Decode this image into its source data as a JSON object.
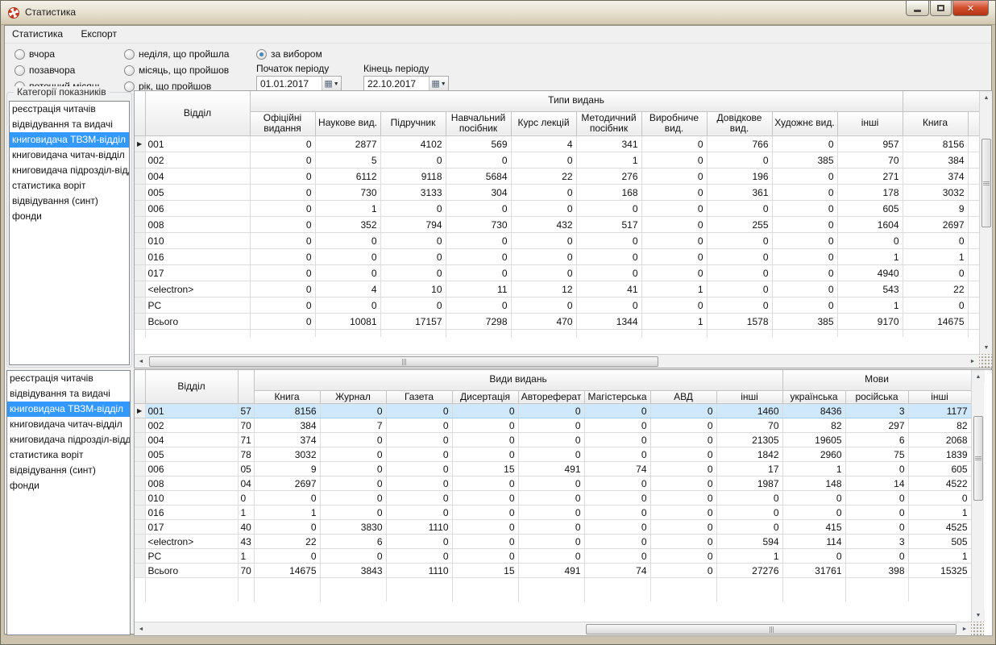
{
  "window": {
    "title": "Статистика"
  },
  "icons": {
    "close": "✕",
    "calendar": "▦",
    "dropdown": "▼",
    "row_marker": "▶",
    "scroll_up": "▲",
    "scroll_down": "▼",
    "scroll_left": "◄",
    "scroll_right": "►"
  },
  "menu": {
    "items": [
      "Статистика",
      "Експорт"
    ]
  },
  "filters": {
    "radios_col1": [
      "вчора",
      "позавчора",
      "поточний місяць"
    ],
    "radios_col2": [
      "неділя, що пройшла",
      "місяць, що пройшов",
      "рік, що пройшов"
    ],
    "radio_custom": "за вибором",
    "selected_radio": "за вибором",
    "period_start_label": "Початок періоду",
    "period_end_label": "Кінець періоду",
    "period_start_value": "01.01.2017",
    "period_end_value": "22.10.2017"
  },
  "sidebar": {
    "group_label": "Категорії показників",
    "items": [
      "реєстрація читачів",
      "відвідування та видачі",
      "книговидача ТВЗМ-відділ",
      "книговидача читач-відділ",
      "книговидача підрозділ-відділ",
      "статистика воріт",
      "відвідування (синт)",
      "фонди"
    ],
    "selected_index": 2
  },
  "top_table": {
    "group_header": "Типи видань",
    "dept_header": "Відділ",
    "columns": [
      "Офіційні видання",
      "Наукове вид.",
      "Підручник",
      "Навчальний посібник",
      "Курс лекцій",
      "Методичний посібник",
      "Виробниче вид.",
      "Довідкове вид.",
      "Художнє вид.",
      "інші"
    ],
    "next_group_column": "Книга",
    "rows": [
      {
        "dept": "001",
        "values": [
          0,
          2877,
          4102,
          569,
          4,
          341,
          0,
          766,
          0,
          957,
          8156
        ]
      },
      {
        "dept": "002",
        "values": [
          0,
          5,
          0,
          0,
          0,
          1,
          0,
          0,
          385,
          70,
          384
        ]
      },
      {
        "dept": "004",
        "values": [
          0,
          6112,
          9118,
          5684,
          22,
          276,
          0,
          196,
          0,
          271,
          374
        ]
      },
      {
        "dept": "005",
        "values": [
          0,
          730,
          3133,
          304,
          0,
          168,
          0,
          361,
          0,
          178,
          3032
        ]
      },
      {
        "dept": "006",
        "values": [
          0,
          1,
          0,
          0,
          0,
          0,
          0,
          0,
          0,
          605,
          9
        ]
      },
      {
        "dept": "008",
        "values": [
          0,
          352,
          794,
          730,
          432,
          517,
          0,
          255,
          0,
          1604,
          2697
        ]
      },
      {
        "dept": "010",
        "values": [
          0,
          0,
          0,
          0,
          0,
          0,
          0,
          0,
          0,
          0,
          0
        ]
      },
      {
        "dept": "016",
        "values": [
          0,
          0,
          0,
          0,
          0,
          0,
          0,
          0,
          0,
          1,
          1
        ]
      },
      {
        "dept": "017",
        "values": [
          0,
          0,
          0,
          0,
          0,
          0,
          0,
          0,
          0,
          4940,
          0
        ]
      },
      {
        "dept": "<electron>",
        "values": [
          0,
          4,
          10,
          11,
          12,
          41,
          1,
          0,
          0,
          543,
          22
        ]
      },
      {
        "dept": "PC",
        "values": [
          0,
          0,
          0,
          0,
          0,
          0,
          0,
          0,
          0,
          1,
          0
        ]
      },
      {
        "dept": "Всього",
        "values": [
          0,
          10081,
          17157,
          7298,
          470,
          1344,
          1,
          1578,
          385,
          9170,
          14675
        ]
      }
    ]
  },
  "bottom_table": {
    "dept_header": "Відділ",
    "groups": [
      {
        "label": "Види видань",
        "columns": [
          "Книга",
          "Журнал",
          "Газета",
          "Дисертація",
          "Автореферат",
          "Магістерська",
          "АВД",
          "інші"
        ]
      },
      {
        "label": "Мови",
        "columns": [
          "українська",
          "російська",
          "інші"
        ]
      }
    ],
    "selected_row_index": 0,
    "rows": [
      {
        "dept": "001",
        "stub": "57",
        "values": [
          8156,
          0,
          0,
          0,
          0,
          0,
          0,
          1460,
          8436,
          3,
          1177
        ]
      },
      {
        "dept": "002",
        "stub": "70",
        "values": [
          384,
          7,
          0,
          0,
          0,
          0,
          0,
          70,
          82,
          297,
          82
        ]
      },
      {
        "dept": "004",
        "stub": "71",
        "values": [
          374,
          0,
          0,
          0,
          0,
          0,
          0,
          21305,
          19605,
          6,
          2068
        ]
      },
      {
        "dept": "005",
        "stub": "78",
        "values": [
          3032,
          0,
          0,
          0,
          0,
          0,
          0,
          1842,
          2960,
          75,
          1839
        ]
      },
      {
        "dept": "006",
        "stub": "05",
        "values": [
          9,
          0,
          0,
          15,
          491,
          74,
          0,
          17,
          1,
          0,
          605
        ]
      },
      {
        "dept": "008",
        "stub": "04",
        "values": [
          2697,
          0,
          0,
          0,
          0,
          0,
          0,
          1987,
          148,
          14,
          4522
        ]
      },
      {
        "dept": "010",
        "stub": "0",
        "values": [
          0,
          0,
          0,
          0,
          0,
          0,
          0,
          0,
          0,
          0,
          0
        ]
      },
      {
        "dept": "016",
        "stub": "1",
        "values": [
          1,
          0,
          0,
          0,
          0,
          0,
          0,
          0,
          0,
          0,
          1
        ]
      },
      {
        "dept": "017",
        "stub": "40",
        "values": [
          0,
          3830,
          1110,
          0,
          0,
          0,
          0,
          0,
          415,
          0,
          4525
        ]
      },
      {
        "dept": "<electron>",
        "stub": "43",
        "values": [
          22,
          6,
          0,
          0,
          0,
          0,
          0,
          594,
          114,
          3,
          505
        ]
      },
      {
        "dept": "PC",
        "stub": "1",
        "values": [
          0,
          0,
          0,
          0,
          0,
          0,
          0,
          1,
          0,
          0,
          1
        ]
      },
      {
        "dept": "Всього",
        "stub": "70",
        "values": [
          14675,
          3843,
          1110,
          15,
          491,
          74,
          0,
          27276,
          31761,
          398,
          15325
        ]
      }
    ]
  }
}
